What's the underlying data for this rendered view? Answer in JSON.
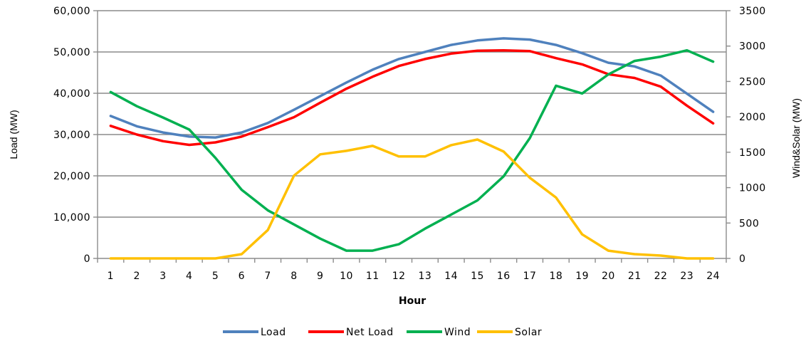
{
  "chart_data": {
    "type": "line",
    "title": "",
    "xlabel": "Hour",
    "ylabel": "Load (MW)",
    "y2label": "Wind&Solar (MW)",
    "x": [
      1,
      2,
      3,
      4,
      5,
      6,
      7,
      8,
      9,
      10,
      11,
      12,
      13,
      14,
      15,
      16,
      17,
      18,
      19,
      20,
      21,
      22,
      23,
      24
    ],
    "x_tick_labels": [
      "1",
      "2",
      "3",
      "4",
      "5",
      "6",
      "7",
      "8",
      "9",
      "10",
      "11",
      "12",
      "13",
      "14",
      "15",
      "16",
      "17",
      "18",
      "19",
      "20",
      "21",
      "22",
      "23",
      "24"
    ],
    "ylim": [
      0,
      60000
    ],
    "y_tick_labels": [
      "0",
      "10,000",
      "20,000",
      "30,000",
      "40,000",
      "50,000",
      "60,000"
    ],
    "y2lim": [
      0,
      3500
    ],
    "y2_tick_labels": [
      "0",
      "500",
      "1000",
      "1500",
      "2000",
      "2500",
      "3000",
      "3500"
    ],
    "grid": "horizontal",
    "legend_position": "bottom",
    "series": [
      {
        "name": "Load",
        "axis": "left",
        "color": "#4F81BD",
        "values": [
          34500,
          32000,
          30500,
          29500,
          29300,
          30500,
          32800,
          36000,
          39300,
          42600,
          45700,
          48300,
          50000,
          51700,
          52800,
          53300,
          53000,
          51700,
          49700,
          47400,
          46500,
          44300,
          39900,
          35500
        ]
      },
      {
        "name": "Net Load",
        "axis": "left",
        "color": "#FF0000",
        "values": [
          32100,
          30000,
          28400,
          27500,
          28100,
          29500,
          31800,
          34200,
          37700,
          41100,
          44000,
          46600,
          48300,
          49600,
          50300,
          50400,
          50200,
          48500,
          47000,
          44600,
          43700,
          41600,
          37000,
          32700
        ]
      },
      {
        "name": "Wind",
        "axis": "right",
        "color": "#00B050",
        "values": [
          2350,
          2150,
          1990,
          1820,
          1420,
          970,
          680,
          480,
          280,
          110,
          110,
          200,
          420,
          620,
          820,
          1160,
          1700,
          2440,
          2330,
          2600,
          2790,
          2850,
          2940,
          2780
        ]
      },
      {
        "name": "Solar",
        "axis": "right",
        "color": "#FFC000",
        "values": [
          0,
          0,
          0,
          0,
          0,
          60,
          400,
          1170,
          1470,
          1520,
          1590,
          1440,
          1440,
          1600,
          1680,
          1510,
          1140,
          860,
          340,
          110,
          60,
          40,
          0,
          0
        ]
      }
    ]
  }
}
